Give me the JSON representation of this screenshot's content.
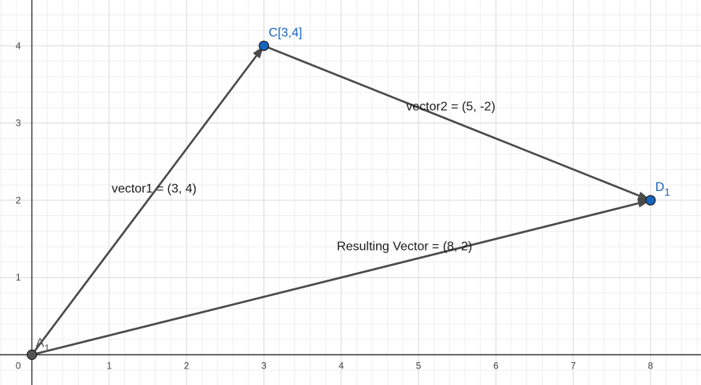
{
  "chart_data": {
    "type": "scatter",
    "xlim": [
      0,
      8.55
    ],
    "ylim": [
      -0.4,
      4.6
    ],
    "x_ticks": [
      "1",
      "2",
      "3",
      "4",
      "5",
      "6",
      "7",
      "8"
    ],
    "y_ticks": [
      "1",
      "2",
      "3",
      "4"
    ],
    "origin_label": "0",
    "grid": true,
    "points": [
      {
        "id": "A",
        "x": 0,
        "y": 0,
        "label": "A",
        "sub": "1",
        "color": "#555555"
      },
      {
        "id": "C",
        "x": 3,
        "y": 4,
        "label": "C[3,4]",
        "sub": "",
        "color": "#1565c0"
      },
      {
        "id": "D",
        "x": 8,
        "y": 2,
        "label": "D",
        "sub": "1",
        "color": "#1565c0"
      }
    ],
    "vectors": [
      {
        "from": [
          0,
          0
        ],
        "to": [
          3,
          4
        ],
        "label": "vector1 = (3, 4)"
      },
      {
        "from": [
          3,
          4
        ],
        "to": [
          8,
          2
        ],
        "label": "vector2 = (5, -2)"
      },
      {
        "from": [
          0,
          0
        ],
        "to": [
          8,
          2
        ],
        "label": "Resulting Vector = (8, 2)"
      }
    ],
    "colors": {
      "grid_major": "#d9d9d9",
      "grid_minor": "#efefef",
      "axis": "#333333",
      "vector": "#4a4a4a",
      "point_blue": "#1565c0",
      "point_dark": "#555555"
    }
  }
}
